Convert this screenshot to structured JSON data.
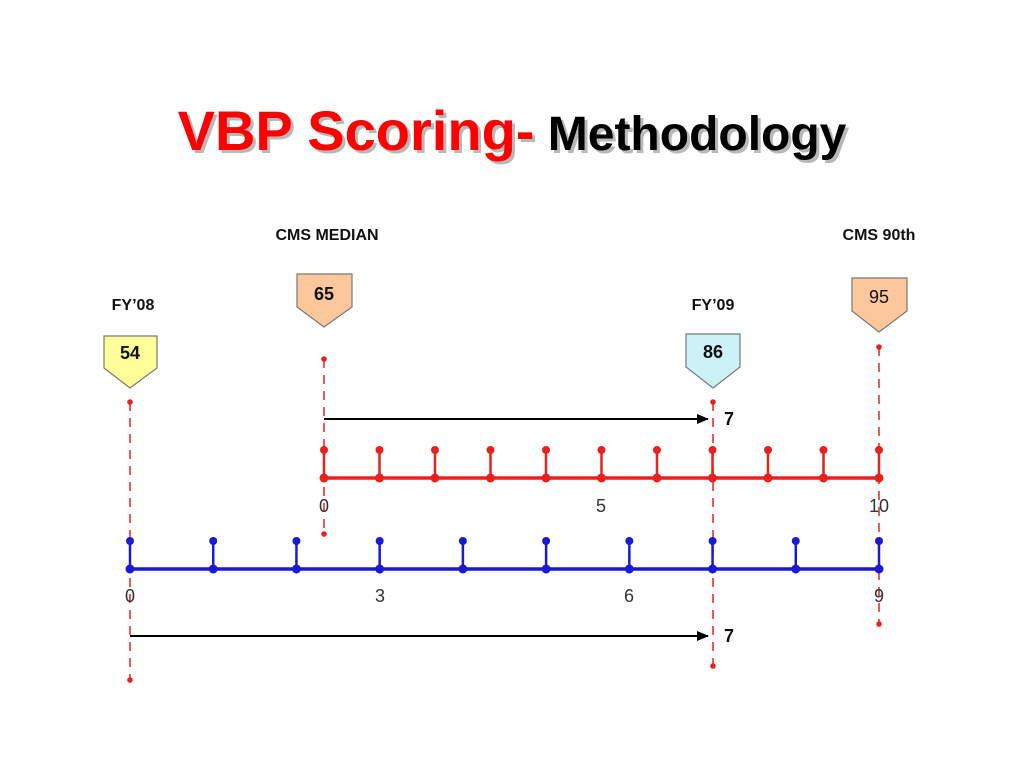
{
  "title": {
    "part1": "VBP Scoring-",
    "part2": " Methodology"
  },
  "colors": {
    "title_red": "#ff0000",
    "red_scale": "#e8201e",
    "blue_scale": "#1a1ad6",
    "dash_red": "#e8201e",
    "arrow": "#000000",
    "fy08_fill": "#ffff99",
    "fy09_fill": "#ccf2f7",
    "cms_fill": "#fcc89b"
  },
  "markers": [
    {
      "id": "fy08",
      "label": "FY’08",
      "value": "54",
      "fill_key": "fy08_fill"
    },
    {
      "id": "cms-median",
      "label": "CMS MEDIAN",
      "value": "65",
      "fill_key": "cms_fill"
    },
    {
      "id": "fy09",
      "label": "FY’09",
      "value": "86",
      "fill_key": "fy09_fill"
    },
    {
      "id": "cms-90th",
      "label": "CMS 90th",
      "value": "95",
      "fill_key": "cms_fill"
    }
  ],
  "scales": {
    "red": {
      "min": 0,
      "max": 10,
      "tick_count": 11,
      "labels": [
        "0",
        "5",
        "10"
      ]
    },
    "blue": {
      "min": 0,
      "max": 9,
      "tick_count": 10,
      "labels": [
        "0",
        "3",
        "6",
        "9"
      ]
    }
  },
  "arrows": [
    {
      "id": "arrow-red",
      "label": "7"
    },
    {
      "id": "arrow-blue",
      "label": "7"
    }
  ]
}
